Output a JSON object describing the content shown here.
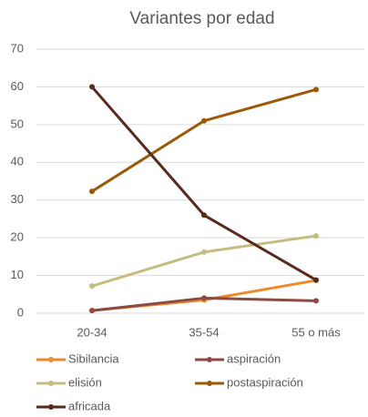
{
  "chart_data": {
    "type": "line",
    "title": "Variantes por edad",
    "categories": [
      "20-34",
      "35-54",
      "55 o más"
    ],
    "series": [
      {
        "name": "Sibilancia",
        "color": "#ed8a2a",
        "values": [
          0.7,
          3.5,
          8.7
        ]
      },
      {
        "name": "aspiración",
        "color": "#8c4a42",
        "values": [
          0.7,
          4,
          3.3
        ]
      },
      {
        "name": "elisión",
        "color": "#c5bd80",
        "values": [
          7.2,
          16.2,
          20.5
        ]
      },
      {
        "name": "postaspiración",
        "color": "#9c5a08",
        "values": [
          32.3,
          51,
          59.3
        ]
      },
      {
        "name": "africada",
        "color": "#5a2a1e",
        "values": [
          60,
          26,
          8.8
        ]
      }
    ],
    "ylim": [
      0,
      70
    ],
    "yticks": [
      0,
      10,
      20,
      30,
      40,
      50,
      60,
      70
    ],
    "grid": true,
    "legend": "bottom"
  }
}
